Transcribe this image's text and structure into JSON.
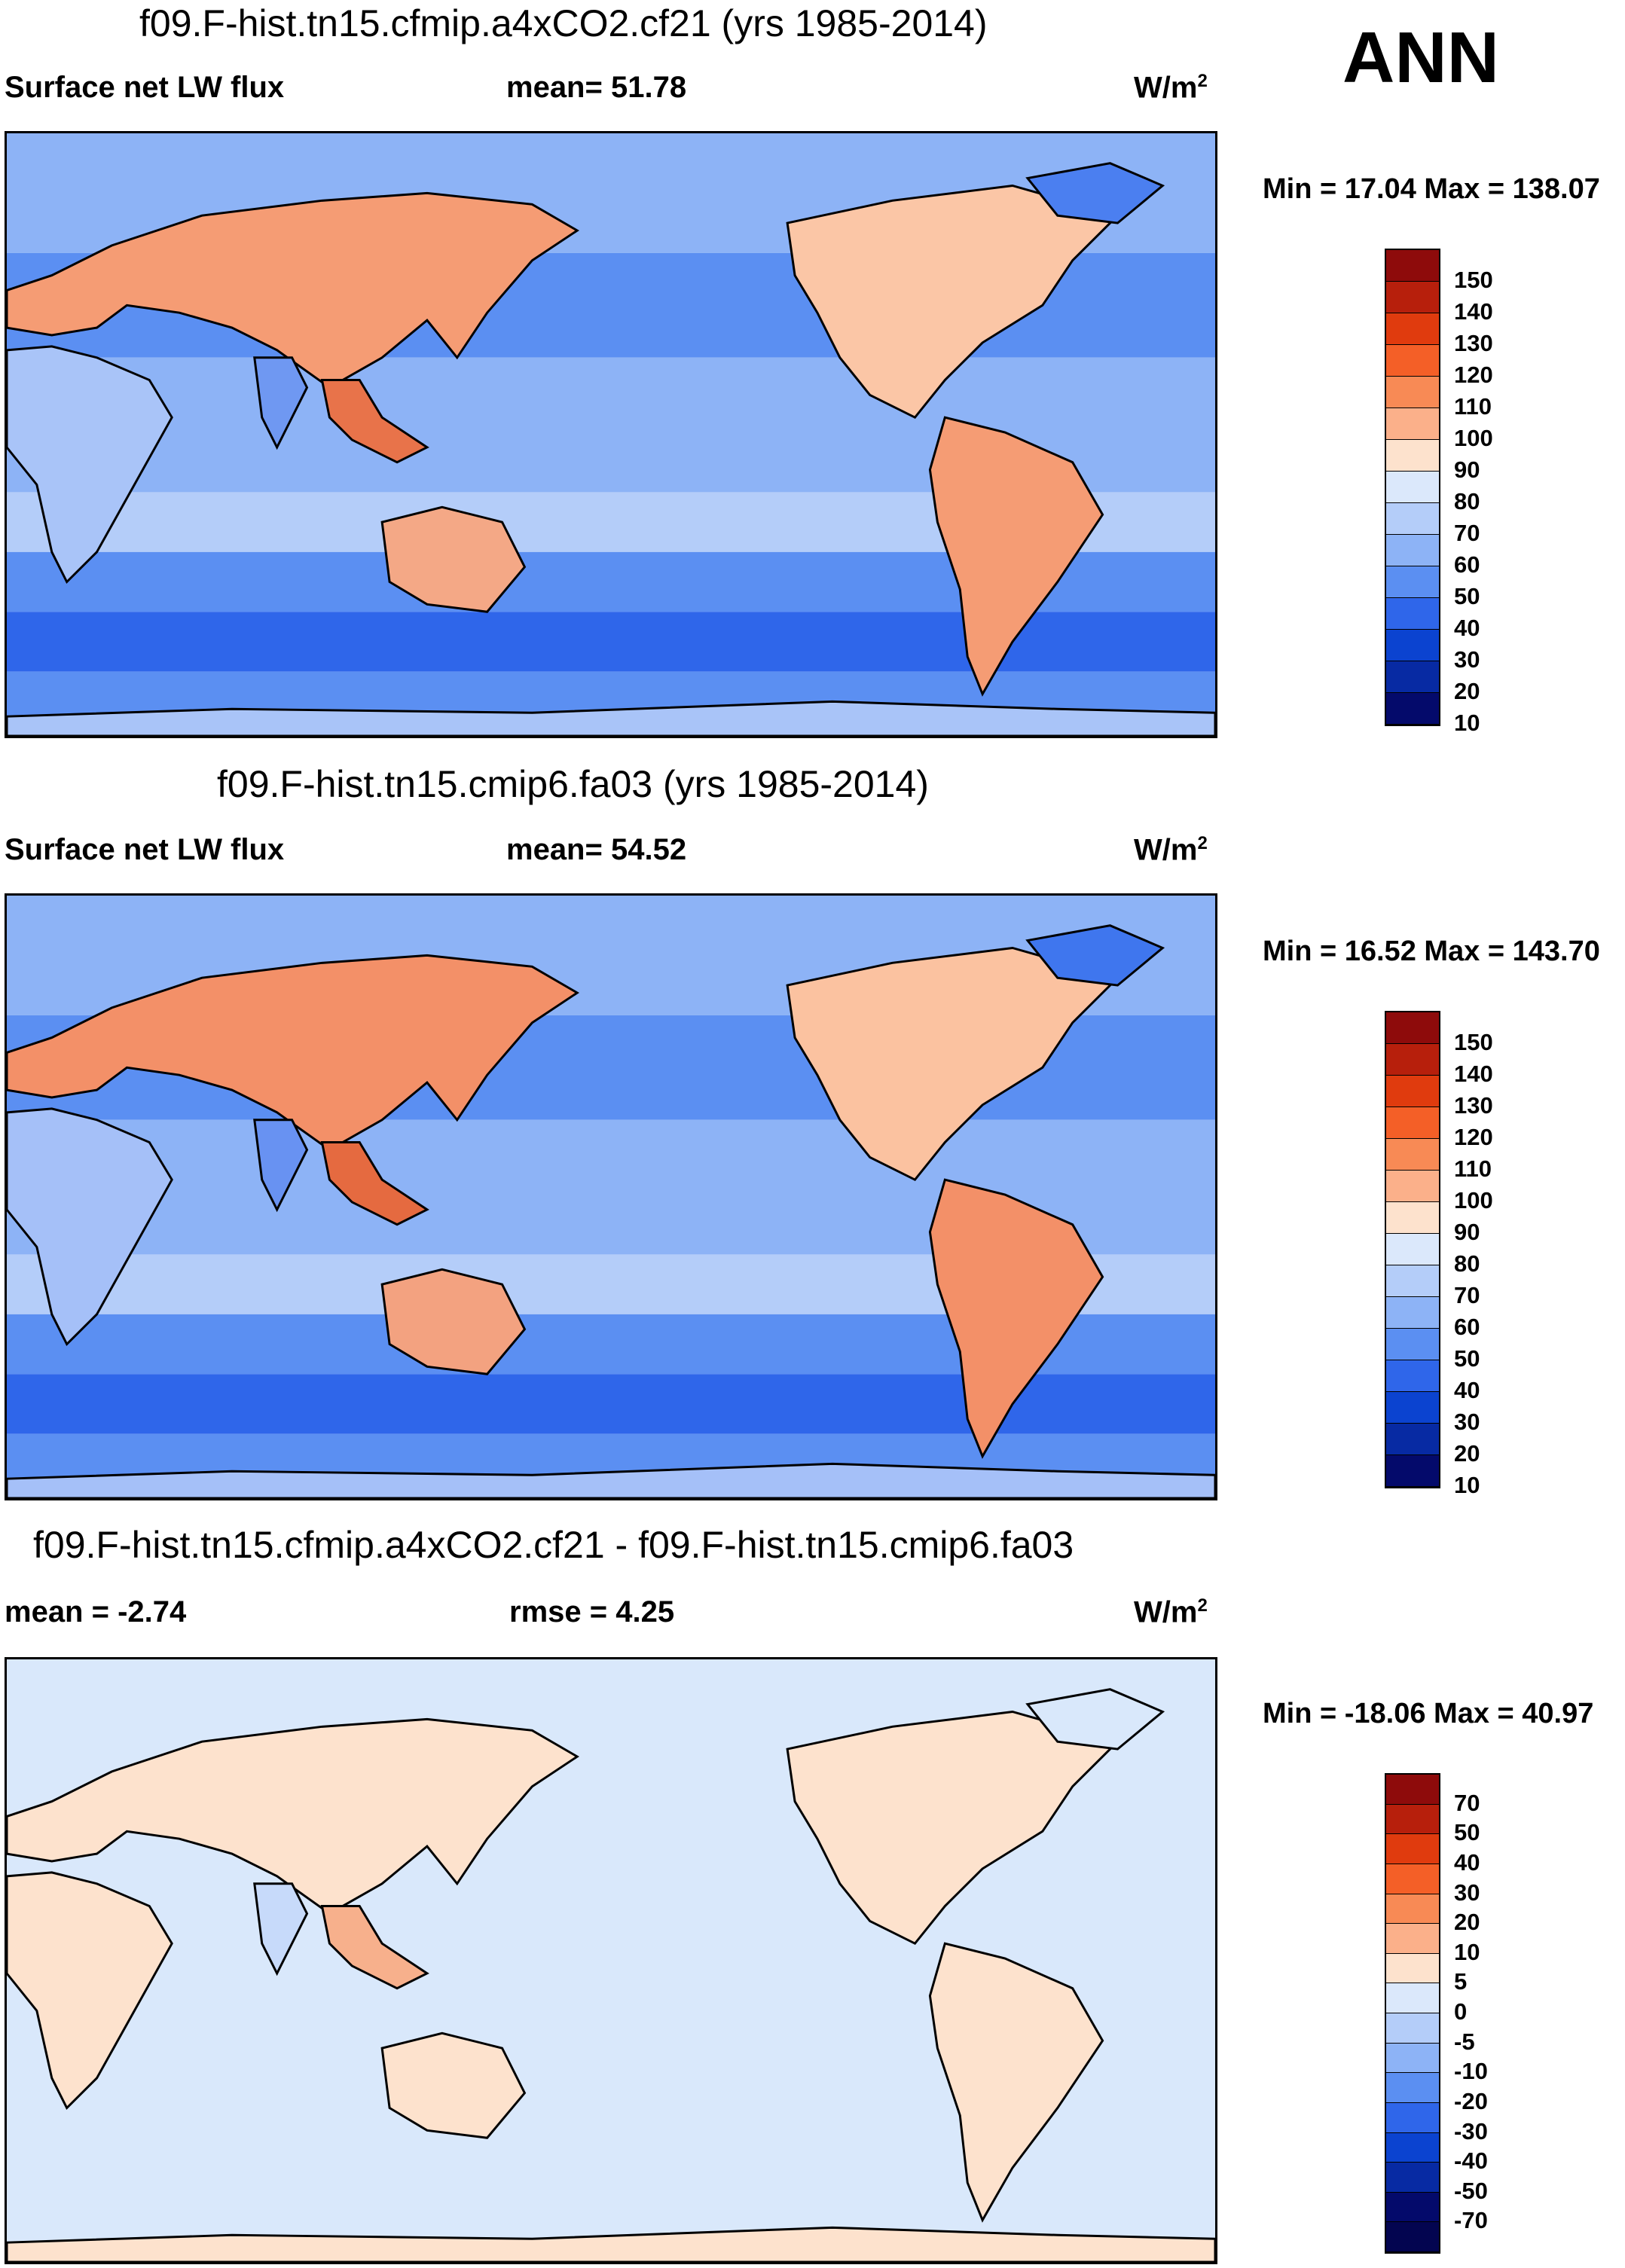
{
  "season": "ANN",
  "units": "W/m",
  "units_exp": "2",
  "panels": [
    {
      "title": "f09.F-hist.tn15.cfmip.a4xCO2.cf21 (yrs 1985-2014)",
      "left_label": "Surface net LW flux",
      "mid_label": "mean=  51.78",
      "minmax": "Min =  17.04 Max = 138.07",
      "ocean_color": "#7ea6f5",
      "colorbar": {
        "colors": [
          "#8e0b0b",
          "#b71f0c",
          "#e03b0e",
          "#f45f27",
          "#f88a55",
          "#fbb08a",
          "#fde2cd",
          "#dbe8fb",
          "#b4cdf9",
          "#8db3f6",
          "#5b8ff2",
          "#2f66ea",
          "#0b43d0",
          "#072aa3",
          "#040a6b"
        ],
        "labels": [
          "150",
          "140",
          "130",
          "120",
          "110",
          "100",
          "90",
          "80",
          "70",
          "60",
          "50",
          "40",
          "30",
          "20",
          "10"
        ]
      }
    },
    {
      "title": "f09.F-hist.tn15.cmip6.fa03 (yrs 1985-2014)",
      "left_label": "Surface net LW flux",
      "mid_label": "mean=  54.52",
      "minmax": "Min =  16.52 Max = 143.70",
      "ocean_color": "#6f9af3",
      "colorbar": {
        "colors": [
          "#8e0b0b",
          "#b71f0c",
          "#e03b0e",
          "#f45f27",
          "#f88a55",
          "#fbb08a",
          "#fde2cd",
          "#dbe8fb",
          "#b4cdf9",
          "#8db3f6",
          "#5b8ff2",
          "#2f66ea",
          "#0b43d0",
          "#072aa3",
          "#040a6b"
        ],
        "labels": [
          "150",
          "140",
          "130",
          "120",
          "110",
          "100",
          "90",
          "80",
          "70",
          "60",
          "50",
          "40",
          "30",
          "20",
          "10"
        ]
      }
    },
    {
      "title": "f09.F-hist.tn15.cfmip.a4xCO2.cf21 - f09.F-hist.tn15.cmip6.fa03",
      "left_label": "mean =  -2.74",
      "mid_label": "rmse =    4.25",
      "minmax": "Min = -18.06 Max =  40.97",
      "ocean_color": "#d9e8fb",
      "colorbar": {
        "colors": [
          "#8e0b0b",
          "#b71f0c",
          "#e03b0e",
          "#f45f27",
          "#f88a55",
          "#fbb08a",
          "#fde2cd",
          "#dbe8fb",
          "#b4cdf9",
          "#8db3f6",
          "#5b8ff2",
          "#2f66ea",
          "#0b43d0",
          "#072aa3",
          "#040a6b",
          "#030550"
        ],
        "labels": [
          "70",
          "50",
          "40",
          "30",
          "20",
          "10",
          "5",
          "0",
          "-5",
          "-10",
          "-20",
          "-30",
          "-40",
          "-50",
          "-70"
        ]
      }
    }
  ]
}
